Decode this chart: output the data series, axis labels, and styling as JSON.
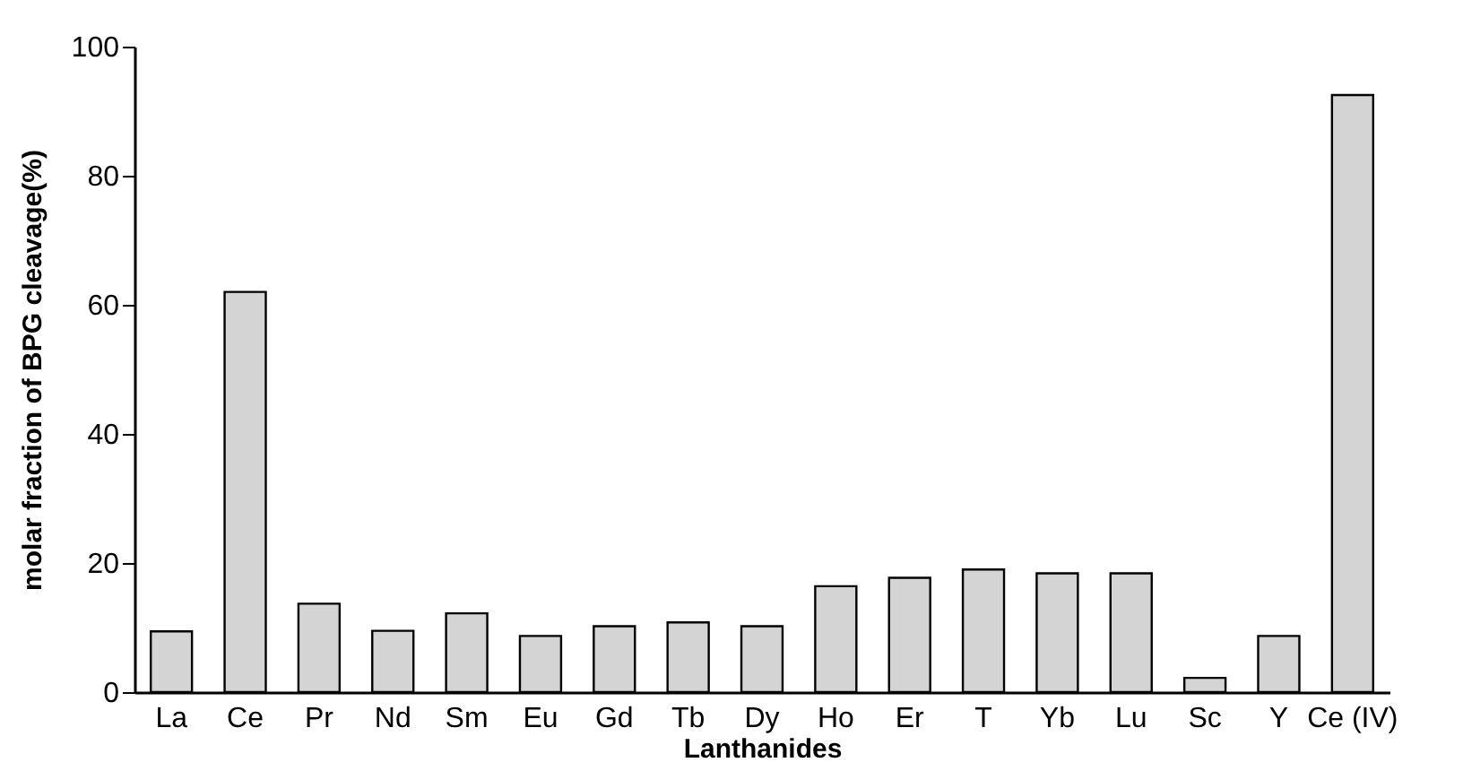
{
  "chart_data": {
    "type": "bar",
    "xlabel": "Lanthanides",
    "ylabel": "molar fraction of BPG cleavage(%)",
    "categories": [
      "La",
      "Ce",
      "Pr",
      "Nd",
      "Sm",
      "Eu",
      "Gd",
      "Tb",
      "Dy",
      "Ho",
      "Er",
      "T",
      "Yb",
      "Lu",
      "Sc",
      "Y",
      "Ce (IV)"
    ],
    "values": [
      9.4,
      62,
      13.7,
      9.5,
      12.2,
      8.7,
      10.2,
      10.8,
      10.2,
      16.4,
      17.7,
      19,
      18.4,
      18.4,
      2.2,
      8.7,
      92.5
    ],
    "color": "#d4d4d4",
    "ylim": [
      0,
      100
    ],
    "yticks": [
      0,
      20,
      40,
      60,
      80,
      100
    ],
    "grid": false
  }
}
